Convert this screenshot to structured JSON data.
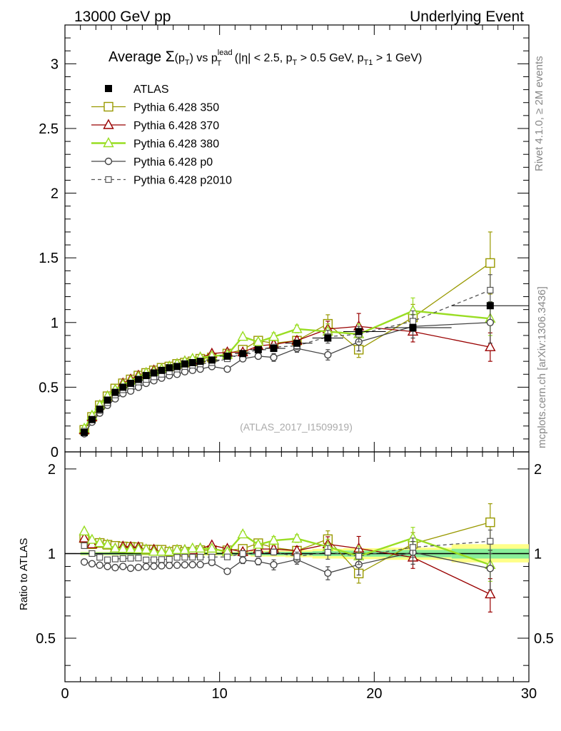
{
  "header": {
    "left": "13000 GeV pp",
    "right": "Underlying Event"
  },
  "side": {
    "rivet": "Rivet 4.1.0, ≥ 2M events",
    "mcplots": "mcplots.cern.ch [arXiv:1306.3436]"
  },
  "chart_data": {
    "type": "line",
    "title": "Average Σ(pT) vs pT lead (|η| < 2.5, pT > 0.5 GeV, pT1 > 1 GeV)",
    "analysis_id": "(ATLAS_2017_I1509919)",
    "ratio_ylabel": "Ratio to ATLAS",
    "xlim": [
      0,
      30
    ],
    "ylim": [
      0,
      3.3
    ],
    "ratio_ylim": [
      0.35,
      2.3
    ],
    "x_ticks": [
      "0",
      "10",
      "20",
      "30"
    ],
    "y_ticks": [
      "0",
      "0.5",
      "1",
      "1.5",
      "2",
      "2.5",
      "3"
    ],
    "ratio_ticks": [
      "0.5",
      "1",
      "2"
    ],
    "legend_position": "top-left",
    "x": [
      1.25,
      1.75,
      2.25,
      2.75,
      3.25,
      3.75,
      4.25,
      4.75,
      5.25,
      5.75,
      6.25,
      6.75,
      7.25,
      7.75,
      8.25,
      8.75,
      9.5,
      10.5,
      11.5,
      12.5,
      13.5,
      15.0,
      17.0,
      19.0,
      22.5,
      27.5
    ],
    "series": [
      {
        "name": "ATLAS",
        "style": "data",
        "values": [
          0.15,
          0.25,
          0.33,
          0.4,
          0.46,
          0.5,
          0.53,
          0.56,
          0.59,
          0.61,
          0.63,
          0.65,
          0.66,
          0.68,
          0.69,
          0.7,
          0.71,
          0.74,
          0.76,
          0.79,
          0.8,
          0.84,
          0.88,
          0.93,
          0.96,
          1.13
        ],
        "band_low": [
          0.99,
          0.99,
          0.99,
          0.99,
          0.99,
          0.99,
          0.99,
          0.99,
          0.99,
          0.99,
          0.99,
          0.99,
          0.99,
          0.99,
          0.99,
          0.99,
          0.99,
          0.99,
          0.99,
          0.985,
          0.985,
          0.985,
          0.98,
          0.975,
          0.97,
          0.96
        ],
        "band_high": [
          1.01,
          1.01,
          1.01,
          1.01,
          1.01,
          1.01,
          1.01,
          1.01,
          1.01,
          1.01,
          1.01,
          1.01,
          1.01,
          1.01,
          1.01,
          1.01,
          1.01,
          1.01,
          1.01,
          1.015,
          1.015,
          1.015,
          1.02,
          1.025,
          1.03,
          1.04
        ],
        "band2_low": [
          0.985,
          0.985,
          0.985,
          0.985,
          0.985,
          0.985,
          0.985,
          0.985,
          0.985,
          0.985,
          0.985,
          0.985,
          0.985,
          0.985,
          0.985,
          0.985,
          0.985,
          0.985,
          0.985,
          0.975,
          0.975,
          0.97,
          0.96,
          0.955,
          0.95,
          0.93
        ],
        "band2_high": [
          1.015,
          1.015,
          1.015,
          1.015,
          1.015,
          1.015,
          1.015,
          1.015,
          1.015,
          1.015,
          1.015,
          1.015,
          1.015,
          1.015,
          1.015,
          1.015,
          1.015,
          1.015,
          1.015,
          1.025,
          1.025,
          1.03,
          1.04,
          1.045,
          1.05,
          1.08
        ]
      },
      {
        "name": "Pythia 6.428 350",
        "color": "#999900",
        "marker": "square",
        "dash": "solid",
        "values": [
          0.17,
          0.27,
          0.36,
          0.43,
          0.49,
          0.53,
          0.56,
          0.59,
          0.61,
          0.63,
          0.65,
          0.66,
          0.68,
          0.69,
          0.7,
          0.72,
          0.73,
          0.76,
          0.79,
          0.86,
          0.84,
          0.86,
          0.99,
          0.79,
          1.04,
          1.46
        ],
        "errors": [
          0.005,
          0.005,
          0.005,
          0.005,
          0.005,
          0.005,
          0.005,
          0.005,
          0.005,
          0.005,
          0.005,
          0.005,
          0.005,
          0.005,
          0.005,
          0.005,
          0.008,
          0.01,
          0.015,
          0.02,
          0.02,
          0.03,
          0.07,
          0.06,
          0.1,
          0.24
        ]
      },
      {
        "name": "Pythia 6.428 370",
        "color": "#990000",
        "marker": "triangle",
        "dash": "solid",
        "values": [
          0.17,
          0.27,
          0.36,
          0.43,
          0.48,
          0.53,
          0.56,
          0.59,
          0.61,
          0.63,
          0.64,
          0.66,
          0.68,
          0.7,
          0.71,
          0.73,
          0.76,
          0.77,
          0.77,
          0.82,
          0.83,
          0.86,
          0.95,
          0.97,
          0.93,
          0.81
        ],
        "errors": [
          0.005,
          0.005,
          0.005,
          0.005,
          0.005,
          0.005,
          0.005,
          0.005,
          0.005,
          0.005,
          0.005,
          0.005,
          0.005,
          0.005,
          0.005,
          0.005,
          0.008,
          0.01,
          0.015,
          0.02,
          0.02,
          0.03,
          0.06,
          0.1,
          0.08,
          0.11
        ]
      },
      {
        "name": "Pythia 6.428 380",
        "color": "#99dd22",
        "marker": "triangle",
        "dash": "solid",
        "thick": true,
        "values": [
          0.18,
          0.28,
          0.36,
          0.43,
          0.48,
          0.52,
          0.55,
          0.58,
          0.61,
          0.62,
          0.64,
          0.66,
          0.68,
          0.7,
          0.72,
          0.73,
          0.74,
          0.75,
          0.89,
          0.85,
          0.89,
          0.95,
          0.93,
          0.91,
          1.09,
          1.03
        ],
        "errors": [
          0.005,
          0.005,
          0.005,
          0.005,
          0.005,
          0.005,
          0.005,
          0.005,
          0.005,
          0.005,
          0.005,
          0.005,
          0.005,
          0.005,
          0.005,
          0.005,
          0.008,
          0.01,
          0.02,
          0.02,
          0.03,
          0.03,
          0.06,
          0.08,
          0.1,
          0.13
        ]
      },
      {
        "name": "Pythia 6.428 p0",
        "color": "#444444",
        "marker": "circle",
        "dash": "solid",
        "values": [
          0.14,
          0.23,
          0.3,
          0.36,
          0.41,
          0.45,
          0.47,
          0.5,
          0.53,
          0.55,
          0.57,
          0.59,
          0.6,
          0.62,
          0.63,
          0.64,
          0.66,
          0.64,
          0.72,
          0.74,
          0.73,
          0.8,
          0.75,
          0.85,
          0.97,
          1.0
        ],
        "errors": [
          0.005,
          0.005,
          0.005,
          0.005,
          0.005,
          0.005,
          0.005,
          0.005,
          0.005,
          0.005,
          0.005,
          0.005,
          0.005,
          0.005,
          0.005,
          0.005,
          0.008,
          0.01,
          0.02,
          0.02,
          0.03,
          0.03,
          0.04,
          0.07,
          0.09,
          0.16
        ]
      },
      {
        "name": "Pythia 6.428 p2010",
        "color": "#555555",
        "marker": "square-small",
        "dash": "dashed",
        "values": [
          0.16,
          0.25,
          0.32,
          0.38,
          0.44,
          0.48,
          0.51,
          0.54,
          0.56,
          0.58,
          0.6,
          0.62,
          0.64,
          0.66,
          0.67,
          0.68,
          0.69,
          0.72,
          0.76,
          0.79,
          0.81,
          0.82,
          0.89,
          0.91,
          1.01,
          1.25
        ],
        "errors": [
          0.005,
          0.005,
          0.005,
          0.005,
          0.005,
          0.005,
          0.005,
          0.005,
          0.005,
          0.005,
          0.005,
          0.005,
          0.005,
          0.005,
          0.005,
          0.005,
          0.008,
          0.01,
          0.015,
          0.02,
          0.02,
          0.03,
          0.05,
          0.06,
          0.08,
          0.12
        ]
      }
    ]
  }
}
